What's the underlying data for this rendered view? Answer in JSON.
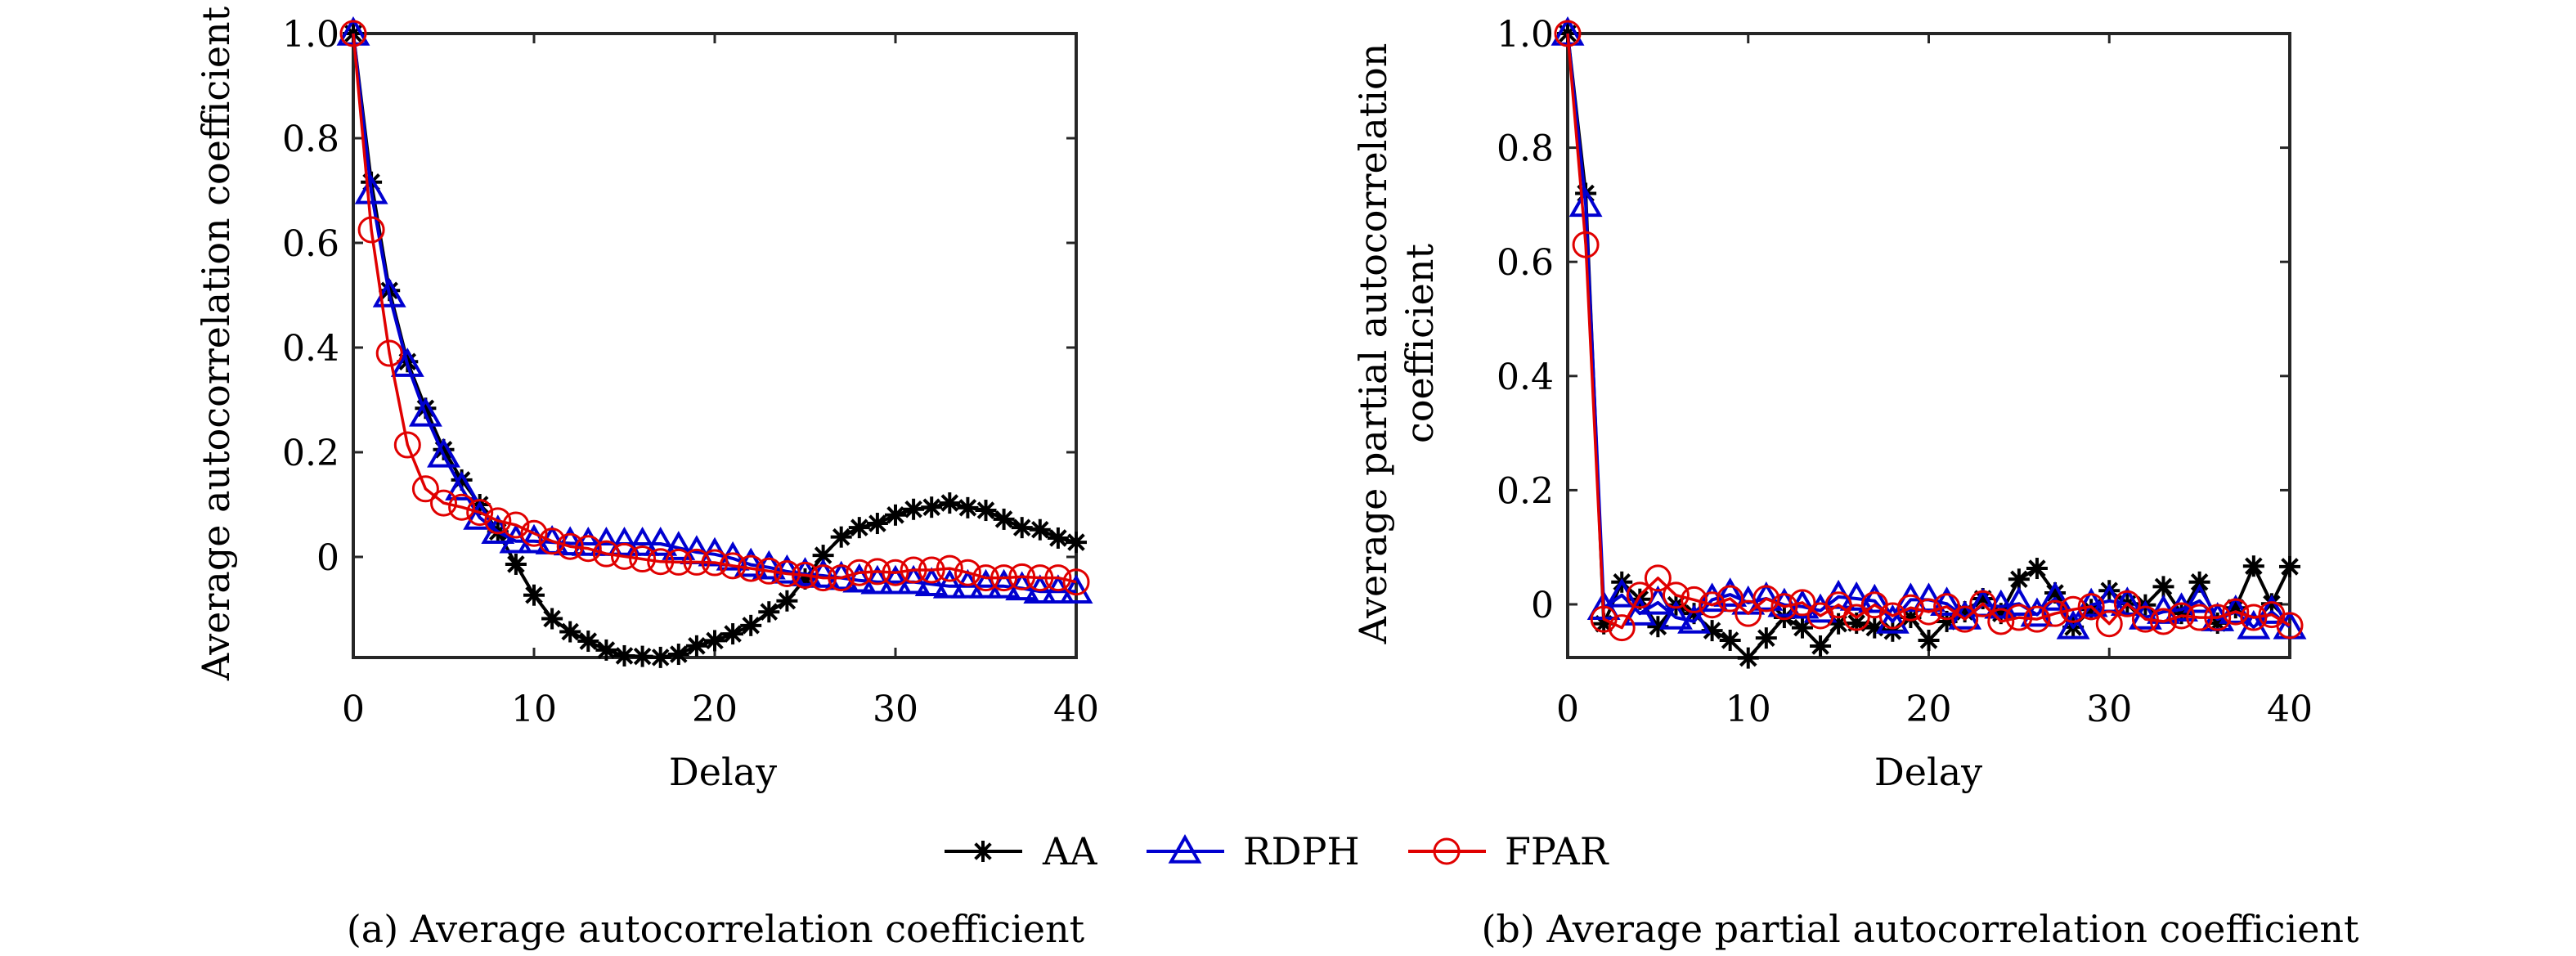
{
  "figure": {
    "legend": [
      {
        "name": "AA",
        "color": "#000000",
        "marker": "asterisk"
      },
      {
        "name": "RDPH",
        "color": "#0000d0",
        "marker": "triangle"
      },
      {
        "name": "FPAR",
        "color": "#e00000",
        "marker": "circle"
      }
    ],
    "legend_placement": "bottom-center"
  },
  "chart_data": [
    {
      "type": "line",
      "caption": "(a) Average autocorrelation coefficient",
      "title": "",
      "xlabel": "Delay",
      "ylabel": "Average autocorrelation coefficient",
      "xlim": [
        0,
        40
      ],
      "ylim": [
        -0.19,
        1.0
      ],
      "xticks": [
        0,
        10,
        20,
        30,
        40
      ],
      "xtick_labels": [
        "0",
        "10",
        "20",
        "30",
        "40"
      ],
      "yticks": [
        0,
        0.2,
        0.4,
        0.6,
        0.8,
        1.0
      ],
      "ytick_labels": [
        "0",
        "0.2",
        "0.4",
        "0.6",
        "0.8",
        "1.0"
      ],
      "grid": false,
      "x": [
        0,
        1,
        2,
        3,
        4,
        5,
        6,
        7,
        8,
        9,
        10,
        11,
        12,
        13,
        14,
        15,
        16,
        17,
        18,
        19,
        20,
        21,
        22,
        23,
        24,
        25,
        26,
        27,
        28,
        29,
        30,
        31,
        32,
        33,
        34,
        35,
        36,
        37,
        38,
        39,
        40
      ],
      "series": [
        {
          "name": "AA",
          "values": [
            1.0,
            0.716,
            0.509,
            0.373,
            0.284,
            0.205,
            0.147,
            0.1,
            0.048,
            -0.014,
            -0.073,
            -0.118,
            -0.143,
            -0.161,
            -0.178,
            -0.189,
            -0.19,
            -0.192,
            -0.186,
            -0.17,
            -0.16,
            -0.147,
            -0.131,
            -0.105,
            -0.084,
            -0.042,
            0.003,
            0.038,
            0.056,
            0.064,
            0.08,
            0.091,
            0.095,
            0.103,
            0.094,
            0.089,
            0.072,
            0.056,
            0.052,
            0.036,
            0.028
          ]
        },
        {
          "name": "RDPH",
          "values": [
            1.0,
            0.697,
            0.5,
            0.367,
            0.272,
            0.194,
            0.131,
            0.075,
            0.048,
            0.03,
            0.03,
            0.028,
            0.026,
            0.025,
            0.025,
            0.025,
            0.025,
            0.025,
            0.017,
            0.009,
            0.005,
            -0.003,
            -0.015,
            -0.02,
            -0.028,
            -0.033,
            -0.036,
            -0.04,
            -0.045,
            -0.048,
            -0.048,
            -0.048,
            -0.052,
            -0.056,
            -0.056,
            -0.056,
            -0.056,
            -0.06,
            -0.066,
            -0.066,
            -0.066
          ]
        },
        {
          "name": "FPAR",
          "values": [
            1.0,
            0.625,
            0.389,
            0.214,
            0.13,
            0.103,
            0.095,
            0.085,
            0.069,
            0.061,
            0.045,
            0.03,
            0.02,
            0.016,
            0.006,
            0.001,
            -0.004,
            -0.009,
            -0.01,
            -0.01,
            -0.011,
            -0.017,
            -0.022,
            -0.027,
            -0.032,
            -0.035,
            -0.04,
            -0.04,
            -0.03,
            -0.028,
            -0.03,
            -0.025,
            -0.025,
            -0.022,
            -0.03,
            -0.04,
            -0.04,
            -0.038,
            -0.04,
            -0.04,
            -0.048
          ]
        }
      ]
    },
    {
      "type": "line",
      "caption": "(b) Average partial autocorrelation coefficient",
      "title": "",
      "xlabel": "Delay",
      "ylabel": [
        "Average partial autocorrelation",
        "coefficient"
      ],
      "xlim": [
        0,
        40
      ],
      "ylim": [
        -0.093,
        1.0
      ],
      "xticks": [
        0,
        10,
        20,
        30,
        40
      ],
      "xtick_labels": [
        "0",
        "10",
        "20",
        "30",
        "40"
      ],
      "yticks": [
        0,
        0.2,
        0.4,
        0.6,
        0.8,
        1.0
      ],
      "ytick_labels": [
        "0",
        "0.2",
        "0.4",
        "0.6",
        "0.8",
        "1.0"
      ],
      "grid": false,
      "x": [
        0,
        1,
        2,
        3,
        4,
        5,
        6,
        7,
        8,
        9,
        10,
        11,
        12,
        13,
        14,
        15,
        16,
        17,
        18,
        19,
        20,
        21,
        22,
        23,
        24,
        25,
        26,
        27,
        28,
        29,
        30,
        31,
        32,
        33,
        34,
        35,
        36,
        37,
        38,
        39,
        40
      ],
      "series": [
        {
          "name": "AA",
          "values": [
            1.0,
            0.72,
            -0.034,
            0.039,
            0.009,
            -0.039,
            -0.001,
            -0.016,
            -0.046,
            -0.063,
            -0.094,
            -0.059,
            -0.023,
            -0.041,
            -0.073,
            -0.034,
            -0.033,
            -0.041,
            -0.047,
            -0.023,
            -0.063,
            -0.03,
            -0.013,
            0.01,
            -0.016,
            0.044,
            0.063,
            0.02,
            -0.04,
            -0.009,
            0.024,
            0.001,
            -0.001,
            0.031,
            -0.016,
            0.039,
            -0.033,
            -0.006,
            0.067,
            0.001,
            0.066
          ]
        },
        {
          "name": "RDPH",
          "values": [
            1.0,
            0.7,
            -0.006,
            0.016,
            -0.016,
            0.003,
            -0.023,
            -0.03,
            0.008,
            0.017,
            0.003,
            0.01,
            -0.001,
            -0.004,
            -0.011,
            0.013,
            0.01,
            0.006,
            -0.03,
            0.008,
            0.008,
            0.001,
            -0.023,
            -0.001,
            -0.004,
            0.001,
            -0.018,
            0.01,
            -0.04,
            -0.001,
            0.006,
            0.001,
            -0.023,
            -0.013,
            -0.009,
            0.006,
            -0.026,
            -0.013,
            -0.04,
            -0.013,
            -0.04
          ]
        },
        {
          "name": "FPAR",
          "values": [
            1.0,
            0.63,
            -0.026,
            -0.041,
            0.016,
            0.046,
            0.016,
            0.008,
            -0.001,
            0.01,
            -0.016,
            0.01,
            -0.004,
            0.003,
            -0.02,
            -0.001,
            -0.023,
            -0.001,
            -0.02,
            -0.006,
            -0.013,
            -0.004,
            -0.026,
            0.001,
            -0.03,
            -0.023,
            -0.026,
            -0.016,
            -0.009,
            -0.004,
            -0.034,
            0.001,
            -0.026,
            -0.03,
            -0.02,
            -0.023,
            -0.023,
            -0.013,
            -0.023,
            -0.018,
            -0.037
          ]
        }
      ]
    }
  ]
}
